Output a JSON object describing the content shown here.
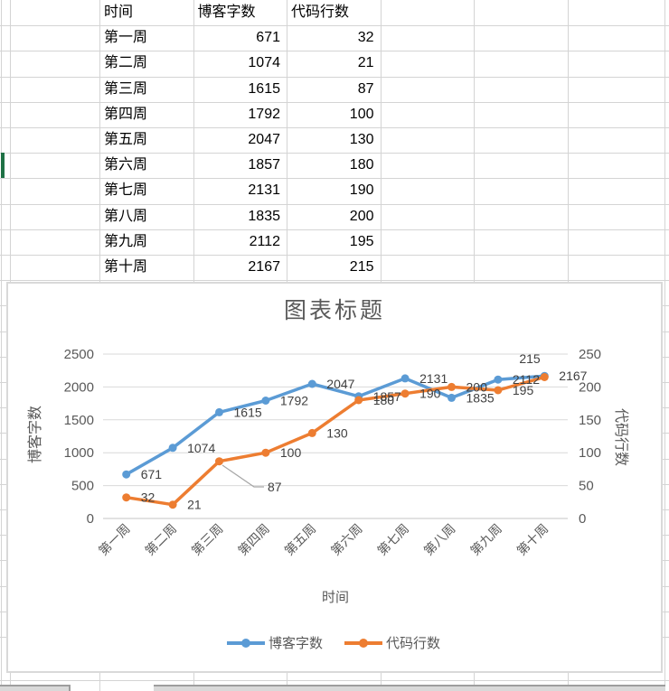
{
  "spreadsheet": {
    "table": {
      "headers": [
        "时间",
        "博客字数",
        "代码行数"
      ],
      "rows": [
        [
          "第一周",
          "671",
          "32"
        ],
        [
          "第二周",
          "1074",
          "21"
        ],
        [
          "第三周",
          "1615",
          "87"
        ],
        [
          "第四周",
          "1792",
          "100"
        ],
        [
          "第五周",
          "2047",
          "130"
        ],
        [
          "第六周",
          "1857",
          "180"
        ],
        [
          "第七周",
          "2131",
          "190"
        ],
        [
          "第八周",
          "1835",
          "200"
        ],
        [
          "第九周",
          "2112",
          "195"
        ],
        [
          "第十周",
          "2167",
          "215"
        ]
      ]
    }
  },
  "chart_data": {
    "type": "line",
    "title": "图表标题",
    "xlabel": "时间",
    "categories": [
      "第一周",
      "第二周",
      "第三周",
      "第四周",
      "第五周",
      "第六周",
      "第七周",
      "第八周",
      "第九周",
      "第十周"
    ],
    "series": [
      {
        "name": "博客字数",
        "axis": "left",
        "color": "#5B9BD5",
        "values": [
          671,
          1074,
          1615,
          1792,
          2047,
          1857,
          2131,
          1835,
          2112,
          2167
        ]
      },
      {
        "name": "代码行数",
        "axis": "right",
        "color": "#ED7D31",
        "values": [
          32,
          21,
          87,
          100,
          130,
          180,
          190,
          200,
          195,
          215
        ]
      }
    ],
    "left_axis": {
      "title": "博客字数",
      "min": 0,
      "max": 2500,
      "step": 500,
      "ticks": [
        "0",
        "500",
        "1000",
        "1500",
        "2000",
        "2500"
      ]
    },
    "right_axis": {
      "title": "代码行数",
      "min": 0,
      "max": 250,
      "step": 50,
      "ticks": [
        "0",
        "50",
        "100",
        "150",
        "200",
        "250"
      ]
    },
    "legend": [
      "博客字数",
      "代码行数"
    ],
    "legend_position": "bottom",
    "grid": true,
    "data_labels": true
  },
  "colors": {
    "series_blue": "#5B9BD5",
    "series_orange": "#ED7D31",
    "chart_gridline": "#D9D9D9",
    "chart_text": "#595959",
    "data_label_text": "#404040",
    "leader_line": "#A6A6A6",
    "spreadsheet_gridline": "#D4D4D4",
    "selection_green": "#1E7145"
  }
}
